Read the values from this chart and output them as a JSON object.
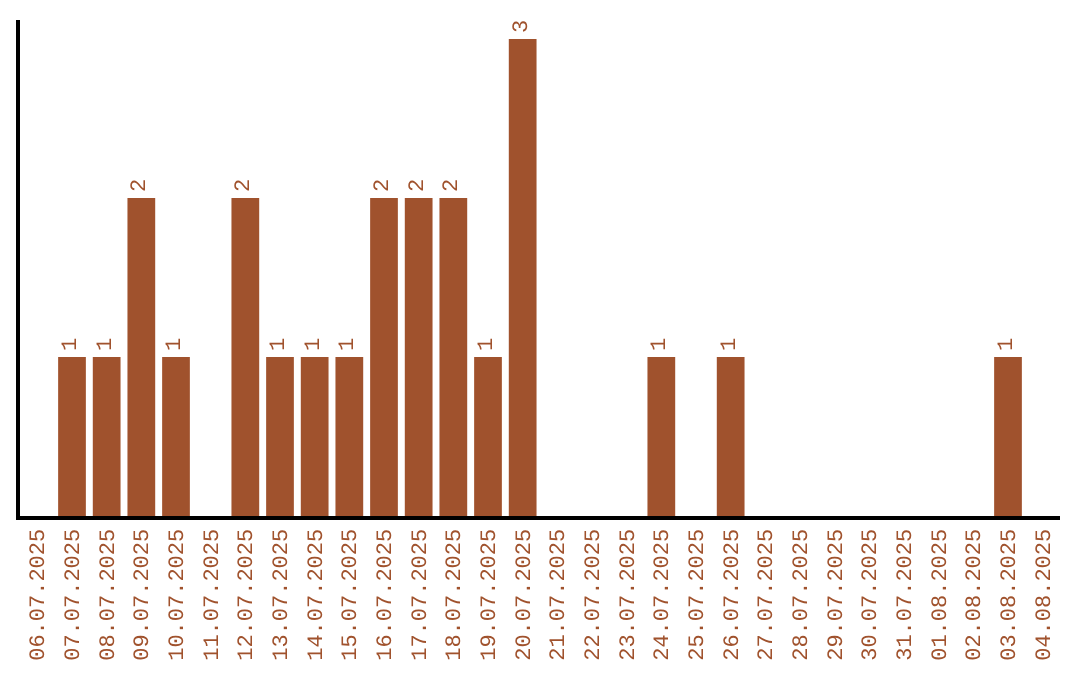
{
  "chart_data": {
    "type": "bar",
    "categories": [
      "06.07.2025",
      "07.07.2025",
      "08.07.2025",
      "09.07.2025",
      "10.07.2025",
      "11.07.2025",
      "12.07.2025",
      "13.07.2025",
      "14.07.2025",
      "15.07.2025",
      "16.07.2025",
      "17.07.2025",
      "18.07.2025",
      "19.07.2025",
      "20.07.2025",
      "21.07.2025",
      "22.07.2025",
      "23.07.2025",
      "24.07.2025",
      "25.07.2025",
      "26.07.2025",
      "27.07.2025",
      "28.07.2025",
      "29.07.2025",
      "30.07.2025",
      "31.07.2025",
      "01.08.2025",
      "02.08.2025",
      "03.08.2025",
      "04.08.2025"
    ],
    "values": [
      0,
      1,
      1,
      2,
      1,
      0,
      2,
      1,
      1,
      1,
      2,
      2,
      2,
      1,
      3,
      0,
      0,
      0,
      1,
      0,
      1,
      0,
      0,
      0,
      0,
      0,
      0,
      0,
      1,
      0
    ],
    "value_labels": [
      null,
      "1",
      "1",
      "2",
      "1",
      null,
      "2",
      "1",
      "1",
      "1",
      "2",
      "2",
      "2",
      "1",
      "3",
      null,
      null,
      null,
      "1",
      null,
      "1",
      null,
      null,
      null,
      null,
      null,
      null,
      null,
      "1",
      null
    ],
    "color": "#a0522d",
    "ylim": [
      0,
      3.12
    ],
    "tick_labels": "x"
  }
}
